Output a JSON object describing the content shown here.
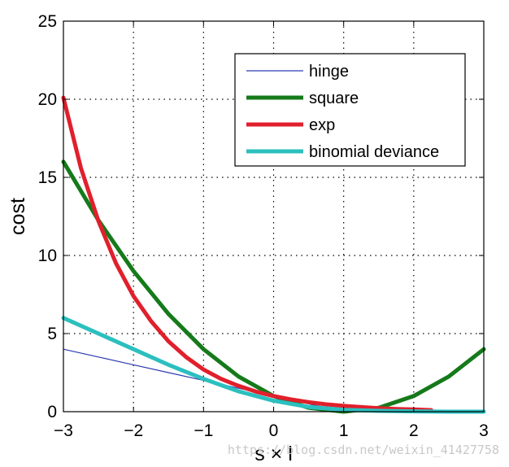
{
  "chart_data": {
    "type": "line",
    "title": "",
    "xlabel": "s × l",
    "ylabel": "cost",
    "xlim": [
      -3,
      3
    ],
    "ylim": [
      0,
      25
    ],
    "xticks": [
      -3,
      -2,
      -1,
      0,
      1,
      2,
      3
    ],
    "yticks": [
      0,
      5,
      10,
      15,
      20,
      25
    ],
    "xtick_labels": [
      "−3",
      "−2",
      "−1",
      "0",
      "1",
      "2",
      "3"
    ],
    "ytick_labels": [
      "0",
      "5",
      "10",
      "15",
      "20",
      "25"
    ],
    "grid": true,
    "legend": "top-right",
    "series": [
      {
        "name": "hinge",
        "color": "#2c3cb0",
        "x": [
          -3,
          -2.5,
          -2,
          -1.5,
          -1,
          -0.5,
          0,
          0.5,
          1,
          1.5,
          2,
          2.5,
          3
        ],
        "y": [
          4,
          3.5,
          3,
          2.5,
          2,
          1.5,
          1,
          0.5,
          0,
          0,
          0,
          0,
          0
        ]
      },
      {
        "name": "square",
        "color": "#157a1a",
        "x": [
          -3,
          -2.5,
          -2,
          -1.5,
          -1,
          -0.5,
          0,
          0.5,
          1,
          1.5,
          2,
          2.5,
          3
        ],
        "y": [
          16,
          12.25,
          9,
          6.25,
          4,
          2.25,
          1,
          0.25,
          0,
          0.25,
          1,
          2.25,
          4
        ]
      },
      {
        "name": "exp",
        "color": "#e0202c",
        "x": [
          -3,
          -2.75,
          -2.5,
          -2.25,
          -2,
          -1.75,
          -1.5,
          -1.25,
          -1,
          -0.75,
          -0.5,
          -0.25,
          0,
          0.25,
          0.5,
          0.75,
          1,
          1.25,
          1.5,
          1.75,
          2,
          2.25
        ],
        "y": [
          20.1,
          15.6,
          12.2,
          9.5,
          7.4,
          5.8,
          4.5,
          3.5,
          2.7,
          2.1,
          1.65,
          1.28,
          1,
          0.78,
          0.61,
          0.47,
          0.37,
          0.29,
          0.22,
          0.17,
          0.14,
          0.1
        ]
      },
      {
        "name": "binomial deviance",
        "color": "#2cbfbf",
        "x": [
          -3,
          -2.5,
          -2,
          -1.5,
          -1,
          -0.5,
          0,
          0.5,
          1,
          1.5,
          2,
          2.5,
          3
        ],
        "y": [
          6,
          5.0,
          4.0,
          3.0,
          2.1,
          1.3,
          0.7,
          0.3,
          0.12,
          0.05,
          0.02,
          0.0,
          0.0
        ]
      }
    ]
  },
  "watermark": "https://blog.csdn.net/weixin_41427758"
}
